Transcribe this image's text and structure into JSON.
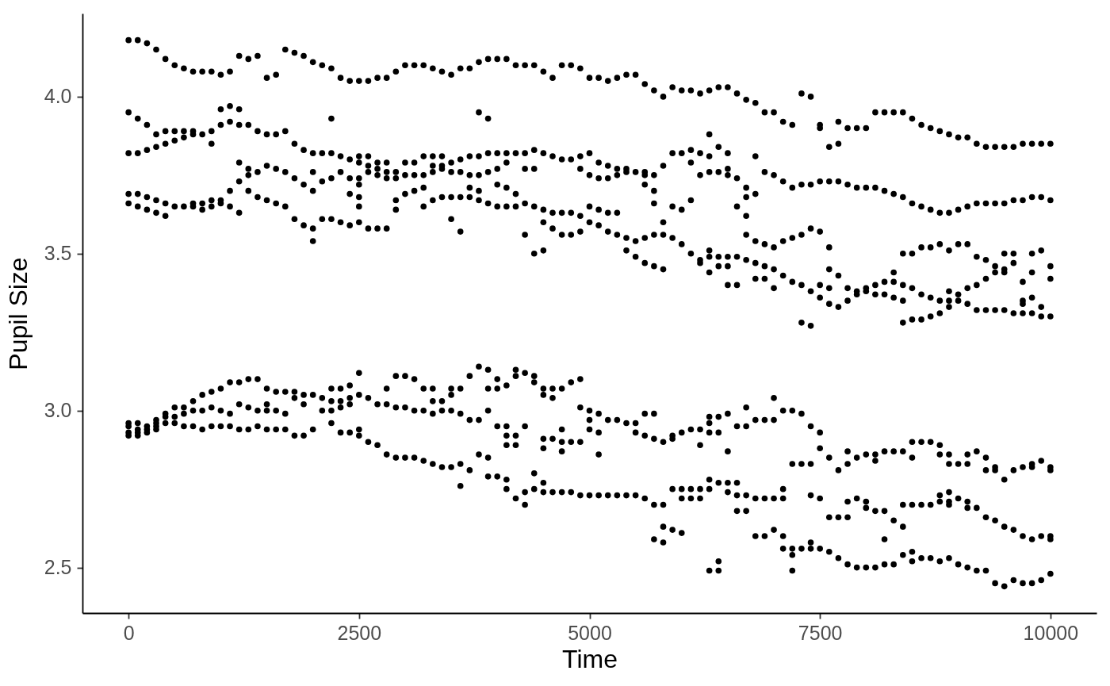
{
  "chart_data": {
    "type": "scatter",
    "xlabel": "Time",
    "ylabel": "Pupil Size",
    "color": "#000000",
    "marker": "circle",
    "xlim": [
      -500,
      10500
    ],
    "xticks": [
      0,
      2500,
      5000,
      7500,
      10000
    ],
    "ylim": [
      2.355,
      4.265
    ],
    "yticks": [
      2.5,
      {
        "value": 3,
        "label": "3.0"
      },
      3.5,
      {
        "value": 4,
        "label": "4.0"
      }
    ],
    "x": [
      0,
      0,
      0,
      0,
      0,
      0,
      0,
      0,
      0,
      100,
      100,
      100,
      100,
      100,
      100,
      100,
      100,
      100,
      200,
      200,
      200,
      200,
      200,
      200,
      200,
      200,
      300,
      300,
      300,
      300,
      300,
      300,
      300,
      300,
      300,
      400,
      400,
      400,
      400,
      400,
      400,
      400,
      400,
      500,
      500,
      500,
      500,
      500,
      500,
      500,
      600,
      600,
      600,
      600,
      600,
      600,
      600,
      700,
      700,
      700,
      700,
      700,
      700,
      700,
      700,
      800,
      800,
      800,
      800,
      800,
      800,
      800,
      900,
      900,
      900,
      900,
      900,
      900,
      900,
      900,
      1000,
      1000,
      1000,
      1000,
      1000,
      1000,
      1000,
      1000,
      1100,
      1100,
      1100,
      1100,
      1100,
      1100,
      1100,
      1100,
      1200,
      1200,
      1200,
      1200,
      1200,
      1200,
      1200,
      1200,
      1200,
      1300,
      1300,
      1300,
      1300,
      1300,
      1300,
      1300,
      1300,
      1400,
      1400,
      1400,
      1400,
      1400,
      1400,
      1400,
      1500,
      1500,
      1500,
      1500,
      1500,
      1500,
      1500,
      1500,
      1600,
      1600,
      1600,
      1600,
      1600,
      1600,
      1600,
      1700,
      1700,
      1700,
      1700,
      1700,
      1700,
      1700,
      1800,
      1800,
      1800,
      1800,
      1800,
      1800,
      1800,
      1900,
      1900,
      1900,
      1900,
      1900,
      1900,
      1900,
      2000,
      2000,
      2000,
      2000,
      2000,
      2000,
      2000,
      2000,
      2100,
      2100,
      2100,
      2100,
      2100,
      2100,
      2200,
      2200,
      2200,
      2200,
      2200,
      2200,
      2200,
      2200,
      2200,
      2300,
      2300,
      2300,
      2300,
      2300,
      2300,
      2300,
      2300,
      2400,
      2400,
      2400,
      2400,
      2400,
      2400,
      2400,
      2400,
      2400,
      2500,
      2500,
      2500,
      2500,
      2500,
      2500,
      2500,
      2500,
      2500,
      2500,
      2500,
      2500,
      2600,
      2600,
      2600,
      2600,
      2600,
      2600,
      2600,
      2700,
      2700,
      2700,
      2700,
      2700,
      2700,
      2700,
      2800,
      2800,
      2800,
      2800,
      2800,
      2800,
      2800,
      2800,
      2900,
      2900,
      2900,
      2900,
      2900,
      2900,
      2900,
      2900,
      3000,
      3000,
      3000,
      3000,
      3000,
      3000,
      3000,
      3100,
      3100,
      3100,
      3100,
      3100,
      3100,
      3100,
      3200,
      3200,
      3200,
      3200,
      3200,
      3200,
      3200,
      3200,
      3300,
      3300,
      3300,
      3300,
      3300,
      3300,
      3300,
      3300,
      3300,
      3400,
      3400,
      3400,
      3400,
      3400,
      3400,
      3400,
      3400,
      3500,
      3500,
      3500,
      3500,
      3500,
      3500,
      3500,
      3500,
      3500,
      3600,
      3600,
      3600,
      3600,
      3600,
      3600,
      3600,
      3600,
      3600,
      3700,
      3700,
      3700,
      3700,
      3700,
      3700,
      3700,
      3700,
      3800,
      3800,
      3800,
      3800,
      3800,
      3800,
      3800,
      3800,
      3800,
      3900,
      3900,
      3900,
      3900,
      3900,
      3900,
      3900,
      3900,
      3900,
      3900,
      4000,
      4000,
      4000,
      4000,
      4000,
      4000,
      4000,
      4000,
      4000,
      4100,
      4100,
      4100,
      4100,
      4100,
      4100,
      4100,
      4100,
      4100,
      4100,
      4100,
      4200,
      4200,
      4200,
      4200,
      4200,
      4200,
      4200,
      4200,
      4200,
      4300,
      4300,
      4300,
      4300,
      4300,
      4300,
      4300,
      4300,
      4300,
      4400,
      4400,
      4400,
      4400,
      4400,
      4400,
      4400,
      4400,
      4400,
      4500,
      4500,
      4500,
      4500,
      4500,
      4500,
      4500,
      4500,
      4500,
      4500,
      4500,
      4600,
      4600,
      4600,
      4600,
      4600,
      4600,
      4600,
      4600,
      4700,
      4700,
      4700,
      4700,
      4700,
      4700,
      4700,
      4700,
      4700,
      4800,
      4800,
      4800,
      4800,
      4800,
      4800,
      4800,
      4900,
      4900,
      4900,
      4900,
      4900,
      4900,
      4900,
      4900,
      4900,
      5000,
      5000,
      5000,
      5000,
      5000,
      5000,
      5000,
      5000,
      5000,
      5100,
      5100,
      5100,
      5100,
      5100,
      5100,
      5100,
      5100,
      5100,
      5200,
      5200,
      5200,
      5200,
      5200,
      5200,
      5200,
      5300,
      5300,
      5300,
      5300,
      5300,
      5300,
      5300,
      5400,
      5400,
      5400,
      5400,
      5400,
      5400,
      5400,
      5500,
      5500,
      5500,
      5500,
      5500,
      5500,
      5500,
      5600,
      5600,
      5600,
      5600,
      5600,
      5600,
      5600,
      5600,
      5600,
      5700,
      5700,
      5700,
      5700,
      5700,
      5700,
      5700,
      5700,
      5700,
      5700,
      5800,
      5800,
      5800,
      5800,
      5800,
      5800,
      5800,
      5800,
      5800,
      5900,
      5900,
      5900,
      5900,
      5900,
      5900,
      5900,
      5900,
      6000,
      6000,
      6000,
      6000,
      6000,
      6000,
      6000,
      6000,
      6100,
      6100,
      6100,
      6100,
      6100,
      6100,
      6100,
      6100,
      6200,
      6200,
      6200,
      6200,
      6200,
      6200,
      6200,
      6200,
      6200,
      6300,
      6300,
      6300,
      6300,
      6300,
      6300,
      6300,
      6300,
      6300,
      6300,
      6300,
      6300,
      6300,
      6400,
      6400,
      6400,
      6400,
      6400,
      6400,
      6400,
      6400,
      6400,
      6400,
      6500,
      6500,
      6500,
      6500,
      6500,
      6500,
      6500,
      6500,
      6500,
      6500,
      6500,
      6600,
      6600,
      6600,
      6600,
      6600,
      6600,
      6600,
      6600,
      6600,
      6700,
      6700,
      6700,
      6700,
      6700,
      6700,
      6700,
      6700,
      6700,
      6700,
      6800,
      6800,
      6800,
      6800,
      6800,
      6800,
      6800,
      6800,
      6800,
      6900,
      6900,
      6900,
      6900,
      6900,
      6900,
      6900,
      6900,
      7000,
      7000,
      7000,
      7000,
      7000,
      7000,
      7000,
      7000,
      7000,
      7100,
      7100,
      7100,
      7100,
      7100,
      7100,
      7100,
      7100,
      7100,
      7200,
      7200,
      7200,
      7200,
      7200,
      7200,
      7200,
      7200,
      7200,
      7300,
      7300,
      7300,
      7300,
      7300,
      7300,
      7300,
      7300,
      7400,
      7400,
      7400,
      7400,
      7400,
      7400,
      7400,
      7400,
      7400,
      7400,
      7500,
      7500,
      7500,
      7500,
      7500,
      7500,
      7500,
      7500,
      7500,
      7500,
      7600,
      7600,
      7600,
      7600,
      7600,
      7600,
      7600,
      7600,
      7600,
      7700,
      7700,
      7700,
      7700,
      7700,
      7700,
      7700,
      7700,
      7800,
      7800,
      7800,
      7800,
      7800,
      7800,
      7800,
      7800,
      7800,
      7900,
      7900,
      7900,
      7900,
      7900,
      7900,
      7900,
      8000,
      8000,
      8000,
      8000,
      8000,
      8000,
      8000,
      8000,
      8100,
      8100,
      8100,
      8100,
      8100,
      8100,
      8100,
      8100,
      8200,
      8200,
      8200,
      8200,
      8200,
      8200,
      8200,
      8200,
      8300,
      8300,
      8300,
      8300,
      8300,
      8300,
      8300,
      8300,
      8400,
      8400,
      8400,
      8400,
      8400,
      8400,
      8400,
      8400,
      8400,
      8400,
      8500,
      8500,
      8500,
      8500,
      8500,
      8500,
      8500,
      8500,
      8500,
      8500,
      8600,
      8600,
      8600,
      8600,
      8600,
      8600,
      8600,
      8600,
      8700,
      8700,
      8700,
      8700,
      8700,
      8700,
      8700,
      8700,
      8800,
      8800,
      8800,
      8800,
      8800,
      8800,
      8800,
      8800,
      8800,
      8800,
      8900,
      8900,
      8900,
      8900,
      8900,
      8900,
      8900,
      8900,
      8900,
      8900,
      8900,
      8900,
      9000,
      9000,
      9000,
      9000,
      9000,
      9000,
      9000,
      9000,
      9100,
      9100,
      9100,
      9100,
      9100,
      9100,
      9100,
      9100,
      9100,
      9100,
      9200,
      9200,
      9200,
      9200,
      9200,
      9200,
      9200,
      9200,
      9300,
      9300,
      9300,
      9300,
      9300,
      9300,
      9300,
      9300,
      9300,
      9400,
      9400,
      9400,
      9400,
      9400,
      9400,
      9400,
      9400,
      9400,
      9500,
      9500,
      9500,
      9500,
      9500,
      9500,
      9500,
      9500,
      9500,
      9600,
      9600,
      9600,
      9600,
      9600,
      9600,
      9600,
      9600,
      9700,
      9700,
      9700,
      9700,
      9700,
      9700,
      9700,
      9700,
      9700,
      9800,
      9800,
      9800,
      9800,
      9800,
      9800,
      9800,
      9800,
      9800,
      9800,
      9900,
      9900,
      9900,
      9900,
      9900,
      9900,
      9900,
      9900,
      10000,
      10000,
      10000,
      10000,
      10000,
      10000,
      10000,
      10000,
      10000,
      10000
    ],
    "values": [
      4.18,
      3.95,
      3.82,
      3.69,
      3.66,
      2.96,
      2.95,
      2.93,
      2.92,
      4.18,
      3.93,
      3.82,
      3.69,
      3.65,
      2.96,
      2.94,
      2.93,
      2.92,
      4.17,
      3.91,
      3.83,
      3.68,
      3.64,
      2.95,
      2.94,
      2.93,
      4.15,
      3.88,
      3.84,
      3.67,
      3.63,
      2.97,
      2.96,
      2.95,
      2.94,
      4.12,
      3.89,
      3.85,
      3.66,
      3.62,
      2.99,
      2.98,
      2.96,
      4.1,
      3.89,
      3.86,
      3.65,
      3.01,
      2.98,
      2.96,
      4.09,
      3.89,
      3.87,
      3.65,
      3.01,
      2.99,
      2.95,
      4.08,
      3.89,
      3.88,
      3.66,
      3.65,
      3.03,
      3.0,
      2.95,
      4.08,
      3.88,
      3.66,
      3.64,
      3.05,
      3.0,
      2.94,
      4.08,
      3.89,
      3.85,
      3.67,
      3.65,
      3.06,
      3.01,
      2.95,
      4.07,
      3.96,
      3.91,
      3.67,
      3.66,
      3.07,
      3.0,
      2.95,
      4.08,
      3.97,
      3.92,
      3.7,
      3.65,
      3.09,
      2.99,
      2.95,
      4.13,
      3.96,
      3.91,
      3.79,
      3.73,
      3.63,
      3.09,
      3.02,
      2.94,
      4.12,
      3.91,
      3.77,
      3.75,
      3.7,
      3.1,
      3.01,
      2.94,
      4.13,
      3.89,
      3.76,
      3.68,
      3.1,
      3.0,
      2.95,
      4.06,
      3.88,
      3.78,
      3.67,
      3.07,
      3.02,
      3.0,
      2.94,
      4.07,
      3.88,
      3.77,
      3.66,
      3.06,
      3.0,
      2.94,
      4.15,
      3.89,
      3.76,
      3.65,
      3.06,
      2.99,
      2.94,
      4.14,
      3.85,
      3.74,
      3.61,
      3.06,
      3.04,
      2.92,
      4.13,
      3.83,
      3.72,
      3.59,
      3.05,
      3.02,
      2.92,
      4.11,
      3.82,
      3.76,
      3.7,
      3.58,
      3.54,
      3.05,
      2.94,
      4.1,
      3.82,
      3.73,
      3.61,
      3.04,
      3.0,
      4.09,
      3.93,
      3.82,
      3.74,
      3.61,
      3.07,
      3.03,
      3.0,
      2.96,
      4.06,
      3.81,
      3.76,
      3.6,
      3.07,
      3.03,
      3.01,
      2.93,
      4.05,
      3.8,
      3.74,
      3.69,
      3.59,
      3.08,
      3.04,
      3.02,
      2.93,
      4.05,
      3.81,
      3.79,
      3.74,
      3.72,
      3.68,
      3.65,
      3.6,
      3.12,
      3.05,
      2.94,
      2.92,
      4.05,
      3.81,
      3.78,
      3.76,
      3.58,
      3.04,
      2.9,
      4.06,
      3.79,
      3.77,
      3.75,
      3.58,
      3.02,
      2.89,
      4.06,
      3.79,
      3.76,
      3.74,
      3.58,
      3.07,
      3.02,
      2.86,
      4.08,
      3.76,
      3.74,
      3.67,
      3.64,
      3.11,
      3.01,
      2.85,
      4.1,
      3.79,
      3.75,
      3.69,
      3.11,
      3.01,
      2.85,
      4.1,
      3.79,
      3.75,
      3.7,
      3.1,
      3.0,
      2.85,
      4.1,
      3.81,
      3.75,
      3.71,
      3.65,
      3.07,
      3.0,
      2.84,
      4.09,
      3.81,
      3.78,
      3.76,
      3.67,
      3.07,
      3.03,
      2.99,
      2.83,
      4.08,
      3.81,
      3.78,
      3.77,
      3.68,
      3.03,
      3.0,
      2.82,
      4.07,
      3.79,
      3.76,
      3.68,
      3.61,
      3.07,
      3.05,
      3.0,
      2.82,
      4.09,
      3.8,
      3.76,
      3.68,
      3.57,
      3.07,
      2.99,
      2.83,
      2.76,
      4.09,
      3.81,
      3.75,
      3.71,
      3.68,
      3.11,
      2.97,
      2.81,
      4.11,
      3.95,
      3.81,
      3.75,
      3.7,
      3.67,
      3.14,
      2.97,
      2.86,
      4.12,
      3.93,
      3.82,
      3.76,
      3.66,
      3.13,
      3.07,
      3.0,
      2.85,
      2.79,
      4.12,
      3.82,
      3.77,
      3.72,
      3.65,
      3.1,
      3.07,
      2.95,
      2.79,
      4.12,
      3.82,
      3.79,
      3.71,
      3.65,
      3.08,
      2.95,
      2.92,
      2.89,
      2.78,
      2.75,
      4.1,
      3.82,
      3.69,
      3.65,
      3.13,
      3.11,
      2.92,
      2.89,
      2.72,
      4.1,
      3.82,
      3.77,
      3.66,
      3.56,
      3.12,
      2.95,
      2.74,
      2.7,
      4.1,
      3.83,
      3.77,
      3.65,
      3.5,
      3.11,
      3.09,
      2.8,
      2.75,
      4.08,
      3.82,
      3.64,
      3.6,
      3.51,
      3.07,
      3.05,
      2.91,
      2.88,
      2.77,
      2.74,
      4.06,
      3.81,
      3.63,
      3.58,
      3.07,
      3.04,
      2.91,
      2.74,
      4.1,
      3.8,
      3.63,
      3.56,
      3.07,
      2.94,
      2.9,
      2.87,
      2.74,
      4.1,
      3.8,
      3.63,
      3.56,
      3.09,
      2.9,
      2.74,
      4.09,
      3.81,
      3.77,
      3.62,
      3.57,
      3.1,
      3.01,
      2.9,
      2.73,
      4.06,
      3.82,
      3.75,
      3.65,
      3.6,
      3.0,
      2.97,
      2.94,
      2.73,
      4.06,
      3.79,
      3.74,
      3.64,
      3.59,
      2.99,
      2.93,
      2.86,
      2.73,
      4.05,
      3.78,
      3.74,
      3.63,
      3.57,
      2.97,
      2.73,
      4.06,
      3.77,
      3.75,
      3.63,
      3.56,
      2.97,
      2.73,
      4.07,
      3.77,
      3.76,
      3.55,
      3.51,
      2.96,
      2.73,
      4.07,
      3.76,
      3.54,
      3.49,
      2.96,
      2.93,
      2.73,
      4.04,
      3.76,
      3.75,
      3.72,
      3.55,
      3.47,
      2.99,
      2.92,
      2.72,
      4.02,
      3.75,
      3.7,
      3.66,
      3.56,
      3.46,
      2.99,
      2.91,
      2.7,
      2.59,
      4.0,
      3.78,
      3.6,
      3.56,
      3.45,
      2.9,
      2.7,
      2.63,
      2.58,
      4.03,
      3.82,
      3.65,
      3.55,
      2.92,
      2.91,
      2.75,
      2.62,
      4.02,
      3.82,
      3.64,
      3.53,
      2.93,
      2.75,
      2.72,
      2.61,
      4.02,
      3.83,
      3.79,
      3.67,
      3.5,
      2.94,
      2.75,
      2.72,
      4.01,
      3.82,
      3.75,
      3.48,
      3.47,
      2.94,
      2.89,
      2.75,
      2.72,
      4.02,
      3.88,
      3.81,
      3.76,
      3.51,
      3.49,
      3.44,
      2.98,
      2.96,
      2.93,
      2.78,
      2.75,
      2.49,
      4.03,
      3.84,
      3.76,
      3.49,
      3.46,
      2.98,
      2.93,
      2.77,
      2.52,
      2.49,
      4.03,
      3.82,
      3.77,
      3.75,
      3.49,
      3.46,
      3.4,
      2.99,
      2.87,
      2.77,
      2.74,
      4.01,
      3.74,
      3.65,
      3.49,
      3.4,
      2.95,
      2.77,
      2.73,
      2.68,
      3.99,
      3.71,
      3.68,
      3.62,
      3.56,
      3.48,
      3.01,
      2.95,
      2.73,
      2.68,
      3.98,
      3.81,
      3.69,
      3.54,
      3.47,
      3.42,
      2.97,
      2.72,
      2.6,
      3.95,
      3.76,
      3.53,
      3.46,
      3.42,
      2.97,
      2.72,
      2.6,
      3.95,
      3.75,
      3.52,
      3.45,
      3.39,
      3.04,
      2.97,
      2.72,
      2.62,
      3.92,
      3.73,
      3.54,
      3.43,
      3.0,
      2.75,
      2.72,
      2.6,
      2.56,
      3.91,
      3.71,
      3.55,
      3.41,
      3.0,
      2.83,
      2.56,
      2.54,
      2.49,
      4.01,
      3.72,
      3.56,
      3.4,
      3.28,
      2.99,
      2.83,
      2.56,
      4.0,
      3.72,
      3.58,
      3.38,
      3.27,
      2.95,
      2.83,
      2.73,
      2.58,
      2.56,
      3.91,
      3.9,
      3.73,
      3.57,
      3.4,
      3.36,
      2.93,
      2.88,
      2.72,
      2.56,
      3.84,
      3.73,
      3.52,
      3.45,
      3.39,
      3.34,
      2.85,
      2.66,
      2.55,
      3.92,
      3.85,
      3.73,
      3.43,
      3.33,
      2.81,
      2.66,
      2.53,
      3.9,
      3.72,
      3.39,
      3.35,
      2.87,
      2.83,
      2.71,
      2.66,
      2.51,
      3.9,
      3.71,
      3.38,
      3.37,
      2.85,
      2.72,
      2.5,
      3.9,
      3.71,
      3.39,
      3.38,
      2.86,
      2.71,
      2.69,
      2.5,
      3.95,
      3.71,
      3.4,
      3.37,
      2.86,
      2.84,
      2.68,
      2.5,
      3.95,
      3.7,
      3.41,
      3.37,
      2.87,
      2.68,
      2.59,
      2.51,
      3.95,
      3.69,
      3.44,
      3.41,
      3.36,
      2.87,
      2.65,
      2.51,
      3.95,
      3.68,
      3.5,
      3.4,
      3.35,
      3.28,
      2.87,
      2.7,
      2.63,
      2.54,
      3.93,
      3.66,
      3.5,
      3.39,
      3.29,
      2.9,
      2.85,
      2.7,
      2.55,
      2.52,
      3.91,
      3.65,
      3.52,
      3.37,
      3.29,
      2.9,
      2.7,
      2.53,
      3.9,
      3.64,
      3.52,
      3.36,
      3.3,
      2.9,
      2.7,
      2.53,
      3.89,
      3.63,
      3.53,
      3.35,
      3.31,
      2.89,
      2.86,
      2.73,
      2.71,
      2.52,
      3.88,
      3.63,
      3.51,
      3.38,
      3.35,
      3.33,
      2.86,
      2.83,
      2.74,
      2.71,
      2.7,
      2.53,
      3.87,
      3.64,
      3.53,
      3.37,
      3.35,
      2.83,
      2.72,
      2.51,
      3.87,
      3.65,
      3.53,
      3.39,
      3.34,
      2.86,
      2.83,
      2.71,
      2.69,
      2.5,
      3.85,
      3.66,
      3.49,
      3.4,
      3.32,
      2.87,
      2.69,
      2.49,
      3.84,
      3.66,
      3.48,
      3.42,
      3.32,
      2.85,
      2.81,
      2.66,
      2.49,
      3.84,
      3.66,
      3.46,
      3.44,
      3.32,
      2.82,
      2.81,
      2.65,
      2.45,
      3.84,
      3.66,
      3.5,
      3.45,
      3.44,
      3.32,
      2.78,
      2.63,
      2.44,
      3.84,
      3.67,
      3.5,
      3.47,
      3.31,
      2.81,
      2.62,
      2.46,
      3.85,
      3.67,
      3.41,
      3.35,
      3.34,
      3.31,
      2.82,
      2.6,
      2.45,
      3.85,
      3.68,
      3.5,
      3.44,
      3.36,
      3.31,
      2.83,
      2.82,
      2.59,
      2.45,
      3.85,
      3.68,
      3.51,
      3.33,
      3.3,
      2.84,
      2.6,
      2.46,
      3.85,
      3.67,
      3.46,
      3.42,
      3.3,
      2.82,
      2.81,
      2.6,
      2.59,
      2.48
    ]
  }
}
